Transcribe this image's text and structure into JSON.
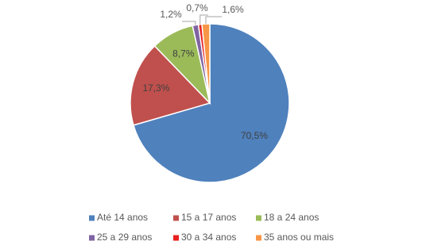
{
  "chart_data": {
    "type": "pie",
    "categories": [
      "Até 14 anos",
      "15 a 17 anos",
      "18 a 24 anos",
      "25 a 29 anos",
      "30 a 34 anos",
      "35 anos ou mais"
    ],
    "values": [
      70.5,
      17.3,
      8.7,
      1.2,
      0.7,
      1.6
    ],
    "value_labels": [
      "70,5%",
      "17,3%",
      "8,7%",
      "1,2%",
      "0,7%",
      "1,6%"
    ],
    "colors": [
      "#4f81bd",
      "#c0504d",
      "#9bbb59",
      "#8064a2",
      "#e8201e",
      "#f79646"
    ],
    "legend": "bottom"
  }
}
